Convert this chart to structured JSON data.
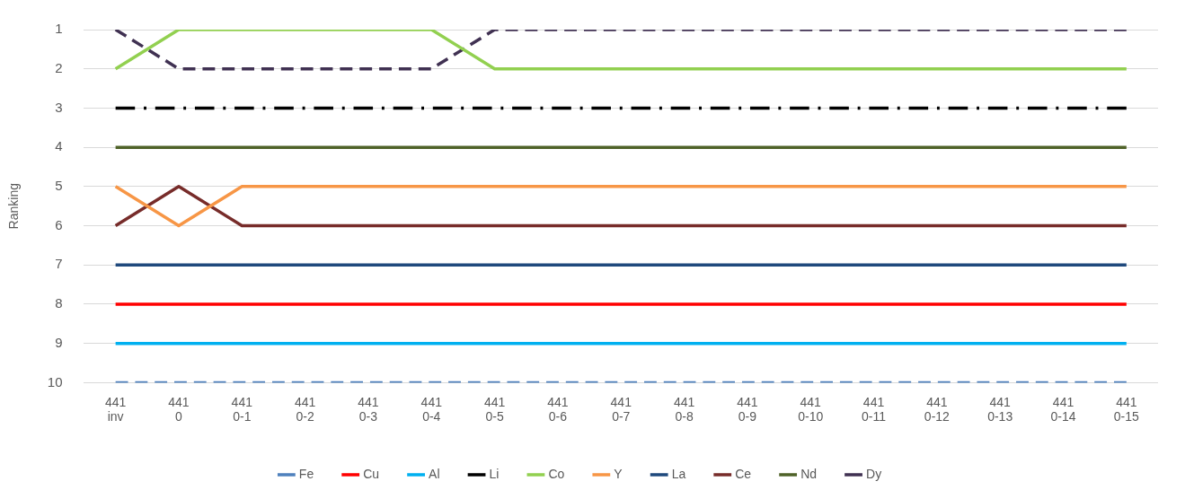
{
  "chart_data": {
    "type": "line",
    "ylabel": "Ranking",
    "categories": [
      "441\ninv",
      "441\n0",
      "441\n0-1",
      "441\n0-2",
      "441\n0-3",
      "441\n0-4",
      "441\n0-5",
      "441\n0-6",
      "441\n0-7",
      "441\n0-8",
      "441\n0-9",
      "441\n0-10",
      "441\n0-11",
      "441\n0-12",
      "441\n0-13",
      "441\n0-14",
      "441\n0-15"
    ],
    "series": [
      {
        "name": "Fe",
        "color": "#4f81bd",
        "line_style": "dashed",
        "values": [
          10,
          10,
          10,
          10,
          10,
          10,
          10,
          10,
          10,
          10,
          10,
          10,
          10,
          10,
          10,
          10,
          10
        ]
      },
      {
        "name": "Cu",
        "color": "#ff0000",
        "values": [
          8,
          8,
          8,
          8,
          8,
          8,
          8,
          8,
          8,
          8,
          8,
          8,
          8,
          8,
          8,
          8,
          8
        ]
      },
      {
        "name": "Al",
        "color": "#00b0f0",
        "values": [
          9,
          9,
          9,
          9,
          9,
          9,
          9,
          9,
          9,
          9,
          9,
          9,
          9,
          9,
          9,
          9,
          9
        ]
      },
      {
        "name": "Li",
        "color": "#000000",
        "line_style": "dashdot",
        "values": [
          3,
          3,
          3,
          3,
          3,
          3,
          3,
          3,
          3,
          3,
          3,
          3,
          3,
          3,
          3,
          3,
          3
        ]
      },
      {
        "name": "Co",
        "color": "#92d050",
        "values": [
          2,
          1,
          1,
          1,
          1,
          1,
          2,
          2,
          2,
          2,
          2,
          2,
          2,
          2,
          2,
          2,
          2
        ]
      },
      {
        "name": "Y",
        "color": "#f79646",
        "values": [
          5,
          6,
          5,
          5,
          5,
          5,
          5,
          5,
          5,
          5,
          5,
          5,
          5,
          5,
          5,
          5,
          5
        ]
      },
      {
        "name": "La",
        "color": "#1f497d",
        "values": [
          7,
          7,
          7,
          7,
          7,
          7,
          7,
          7,
          7,
          7,
          7,
          7,
          7,
          7,
          7,
          7,
          7
        ]
      },
      {
        "name": "Ce",
        "color": "#772c2a",
        "values": [
          6,
          5,
          6,
          6,
          6,
          6,
          6,
          6,
          6,
          6,
          6,
          6,
          6,
          6,
          6,
          6,
          6
        ]
      },
      {
        "name": "Nd",
        "color": "#4f6228",
        "values": [
          4,
          4,
          4,
          4,
          4,
          4,
          4,
          4,
          4,
          4,
          4,
          4,
          4,
          4,
          4,
          4,
          4
        ]
      },
      {
        "name": "Dy",
        "color": "#403152",
        "line_style": "dashed",
        "values": [
          1,
          2,
          2,
          2,
          2,
          2,
          1,
          1,
          1,
          1,
          1,
          1,
          1,
          1,
          1,
          1,
          1
        ]
      }
    ],
    "ylim": [
      10,
      1
    ],
    "yticks": [
      1,
      2,
      3,
      4,
      5,
      6,
      7,
      8,
      9,
      10
    ],
    "grid": "y",
    "legend": "bottom",
    "marker": "none",
    "line_style": "solid"
  }
}
